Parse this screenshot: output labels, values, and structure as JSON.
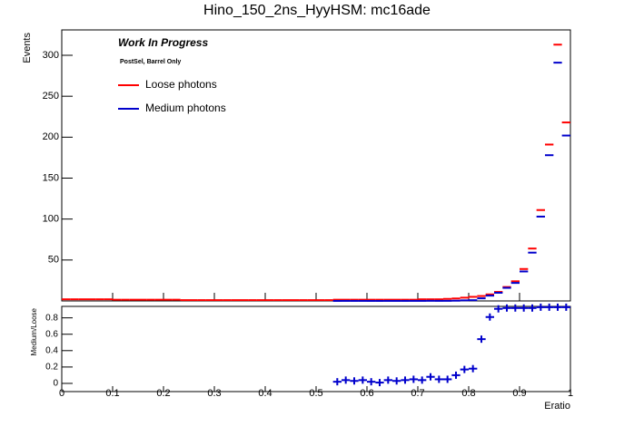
{
  "chart_data": {
    "type": "histogram",
    "title": "Hino_150_2ns_HyyHSM: mc16ade",
    "annotations": [
      "Work In Progress",
      "PostSel, Barrel Only"
    ],
    "x_label": "Eratio",
    "y_label": "Events",
    "bins": [
      0,
      0.0167,
      0.0333,
      0.05,
      0.0667,
      0.0833,
      0.1,
      0.1167,
      0.1333,
      0.15,
      0.1667,
      0.1833,
      0.2,
      0.2167,
      0.2333,
      0.25,
      0.2667,
      0.2833,
      0.3,
      0.3167,
      0.3333,
      0.35,
      0.3667,
      0.3833,
      0.4,
      0.4167,
      0.4333,
      0.45,
      0.4667,
      0.4833,
      0.5,
      0.5167,
      0.5333,
      0.55,
      0.5667,
      0.5833,
      0.6,
      0.6167,
      0.6333,
      0.65,
      0.6667,
      0.6833,
      0.7,
      0.7167,
      0.7333,
      0.75,
      0.7667,
      0.7833,
      0.8,
      0.8167,
      0.8333,
      0.85,
      0.8667,
      0.8833,
      0.9,
      0.9167,
      0.9333,
      0.95,
      0.9667,
      0.9833,
      1
    ],
    "series": [
      {
        "name": "Loose photons",
        "color": "#ff0000",
        "values": [
          2,
          2,
          2,
          2,
          2,
          2,
          1.5,
          1.5,
          1.5,
          1.5,
          1.5,
          1.5,
          1.5,
          1.5,
          1,
          1,
          1,
          1,
          1,
          1,
          1,
          1,
          1,
          1,
          1,
          1,
          1,
          1,
          1,
          1,
          1,
          1,
          1.5,
          1.5,
          1.5,
          1.5,
          1.5,
          1.5,
          1.5,
          1.5,
          1.5,
          1.5,
          2,
          2,
          2,
          2.5,
          3,
          4,
          5,
          6,
          8,
          11,
          17,
          24,
          39,
          64,
          111,
          191,
          313,
          218
        ]
      },
      {
        "name": "Medium photons",
        "color": "#0000cc",
        "values": [
          null,
          null,
          null,
          null,
          null,
          null,
          null,
          null,
          null,
          null,
          null,
          null,
          null,
          null,
          null,
          null,
          null,
          null,
          null,
          null,
          null,
          null,
          null,
          null,
          null,
          null,
          null,
          null,
          null,
          null,
          null,
          null,
          0.03,
          0.06,
          0.05,
          0.06,
          0.03,
          0.02,
          0.06,
          0.05,
          0.06,
          0.08,
          0.08,
          0.16,
          0.1,
          0.13,
          0.3,
          0.7,
          0.9,
          3.2,
          6.5,
          10,
          16,
          22,
          36,
          59,
          103,
          178,
          291,
          202
        ]
      }
    ],
    "xlim": [
      0,
      1
    ],
    "xticks": [
      0,
      0.1,
      0.2,
      0.3,
      0.4,
      0.5,
      0.6,
      0.7,
      0.8,
      0.9,
      1
    ],
    "ylim": [
      0,
      331
    ],
    "yticks": [
      50,
      100,
      150,
      200,
      250,
      300
    ],
    "ratio": {
      "y_label": "Medium/Loose",
      "color": "#0000cc",
      "values": [
        null,
        null,
        null,
        null,
        null,
        null,
        null,
        null,
        null,
        null,
        null,
        null,
        null,
        null,
        null,
        null,
        null,
        null,
        null,
        null,
        null,
        null,
        null,
        null,
        null,
        null,
        null,
        null,
        null,
        null,
        null,
        null,
        0.02,
        0.04,
        0.03,
        0.04,
        0.02,
        0.01,
        0.04,
        0.03,
        0.04,
        0.05,
        0.04,
        0.08,
        0.05,
        0.05,
        0.1,
        0.17,
        0.18,
        0.54,
        0.81,
        0.91,
        0.92,
        0.92,
        0.92,
        0.92,
        0.93,
        0.93,
        0.93,
        0.93
      ],
      "ylim": [
        -0.1,
        0.94
      ],
      "yticks": [
        0,
        0.2,
        0.4,
        0.6,
        0.8
      ]
    }
  }
}
